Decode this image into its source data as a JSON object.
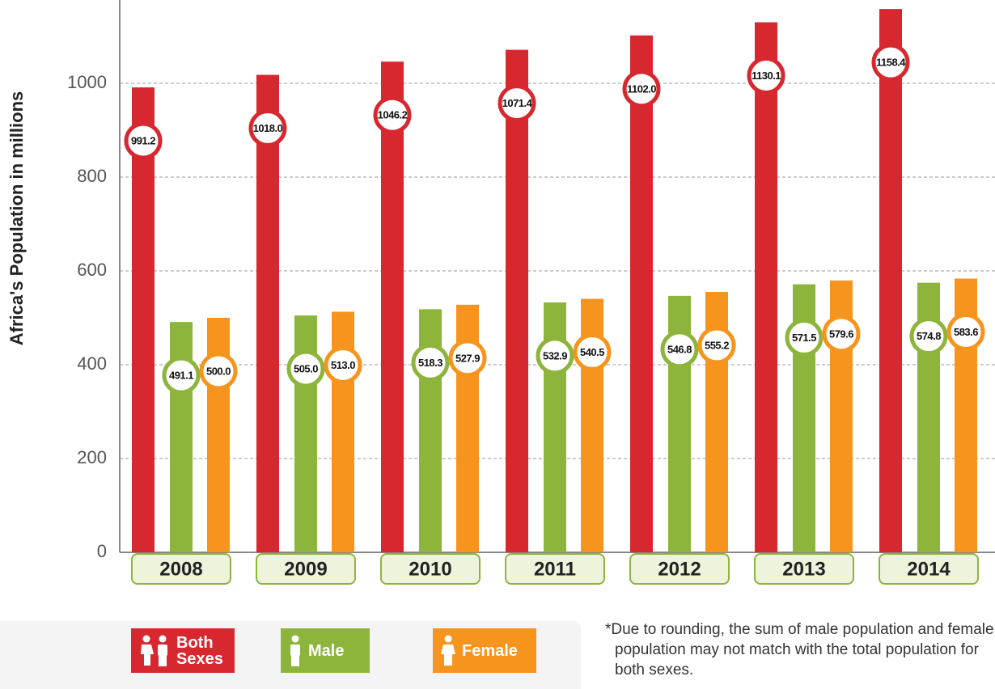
{
  "chart_data": {
    "type": "bar",
    "y_label": "Africa's Population in millions",
    "categories": [
      "2008",
      "2009",
      "2010",
      "2011",
      "2012",
      "2013",
      "2014"
    ],
    "series": [
      {
        "name": "Both Sexes",
        "color": "#d7282f",
        "values": [
          991.2,
          1018.0,
          1046.2,
          1071.4,
          1102.0,
          1130.1,
          1158.4
        ],
        "value_labels": [
          "991.2",
          "1018.0",
          "1046.2",
          "1071.4",
          "1102.0",
          "1130.1",
          "1158.4"
        ]
      },
      {
        "name": "Male",
        "color": "#8db53c",
        "values": [
          491.1,
          505.0,
          518.3,
          532.9,
          546.8,
          571.5,
          574.8
        ],
        "value_labels": [
          "491.1",
          "505.0",
          "518.3",
          "532.9",
          "546.8",
          "571.5",
          "574.8"
        ]
      },
      {
        "name": "Female",
        "color": "#f7941d",
        "values": [
          500.0,
          513.0,
          527.9,
          540.5,
          555.2,
          579.6,
          583.6
        ],
        "value_labels": [
          "500.0",
          "513.0",
          "527.9",
          "540.5",
          "555.2",
          "579.6",
          "583.6"
        ]
      }
    ],
    "ylim": [
      0,
      1170
    ],
    "yticks": [
      0,
      200,
      400,
      600,
      800,
      1000
    ],
    "grid": true,
    "note": "*Due to rounding, the sum of male population and female population may not match with the total population for both sexes."
  }
}
